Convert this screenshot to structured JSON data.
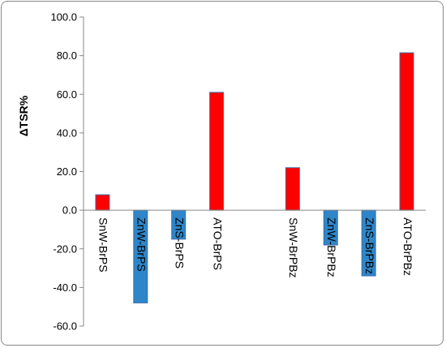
{
  "chart_data": {
    "type": "bar",
    "title": "",
    "xlabel": "",
    "ylabel": "ΔTSR%",
    "ylim": [
      -60,
      100
    ],
    "yticks": [
      100,
      80,
      60,
      40,
      20,
      0,
      -20,
      -40,
      -60
    ],
    "ytick_labels": [
      "100.0",
      "80.0",
      "60.0",
      "40.0",
      "20.0",
      "0.0",
      "-20.0",
      "-40.0",
      "-60.0"
    ],
    "grid": false,
    "legend": "none",
    "categories": [
      "SnW-BrPS",
      "ZnW-BrPS",
      "ZnS-BrPS",
      "ATO-BrPS",
      "",
      "SnW-BrPBz",
      "ZnW-BrPBz",
      "ZnS-BrPBz",
      "ATO-BrPBz"
    ],
    "values": [
      8,
      -48,
      -15,
      61,
      null,
      22,
      -18,
      -34,
      81.5
    ],
    "colors": {
      "positive": "#ff0000",
      "negative": "#2e86c8",
      "bar_edge": "#3a6fb0"
    }
  }
}
